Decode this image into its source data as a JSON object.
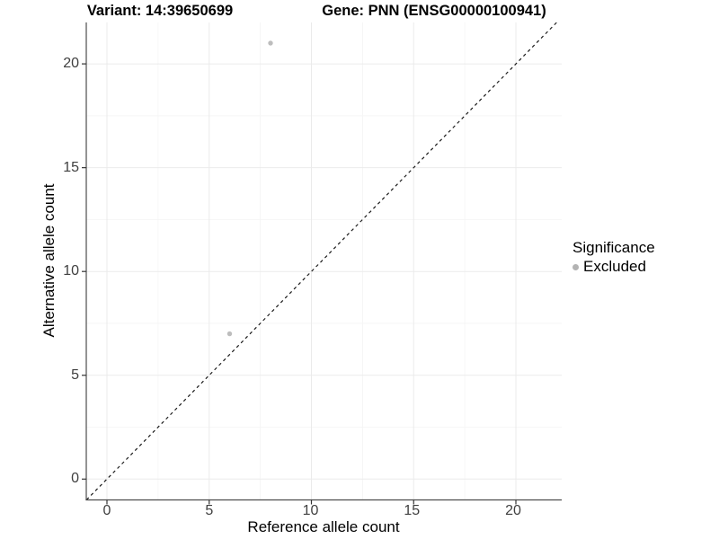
{
  "title": {
    "variant_label": "Variant: 14:39650699",
    "gene_label": "Gene: PNN (ENSG00000100941)"
  },
  "chart_data": {
    "type": "scatter",
    "xlabel": "Reference allele count",
    "ylabel": "Alternative allele count",
    "x_ticks": [
      0,
      5,
      10,
      15,
      20
    ],
    "y_ticks": [
      0,
      5,
      10,
      15,
      20
    ],
    "x_tick_labels": [
      "0",
      "5",
      "10",
      "15",
      "20"
    ],
    "y_tick_labels": [
      "0",
      "5",
      "10",
      "15",
      "20"
    ],
    "xlim": [
      -1,
      22.3
    ],
    "ylim": [
      -1,
      22
    ],
    "grid": "major and minor, very light gray",
    "legend_position": "right",
    "points": [
      {
        "x": 8,
        "y": 21,
        "series": "Excluded"
      },
      {
        "x": 6,
        "y": 7,
        "series": "Excluded"
      }
    ],
    "reference_line": {
      "type": "identity y=x",
      "style": "dashed",
      "x1": -1,
      "y1": -1,
      "x2": 22,
      "y2": 22
    },
    "point_color": "#bdbdbd"
  },
  "legend": {
    "title": "Significance",
    "items": [
      {
        "label": "Excluded",
        "color": "#b3b3b3",
        "marker": "circle"
      }
    ]
  },
  "colors": {
    "background": "#ffffff",
    "axis_line": "#4d4d4d",
    "tick_mark": "#333333",
    "tick_label": "#404040",
    "grid_major": "#ebebeb",
    "grid_minor": "#f5f5f5",
    "dashed_line": "#1a1a1a"
  }
}
